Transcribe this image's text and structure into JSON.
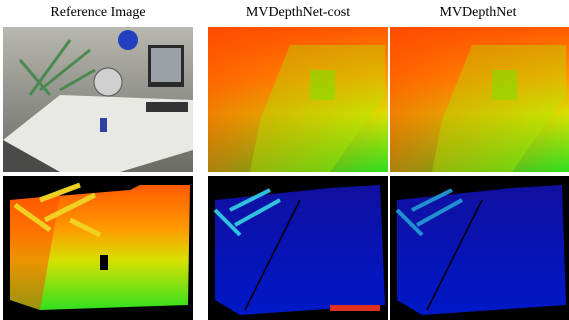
{
  "columns": [
    {
      "title": "Reference Image"
    },
    {
      "title": "MVDepthNet-cost"
    },
    {
      "title": "MVDepthNet"
    }
  ]
}
